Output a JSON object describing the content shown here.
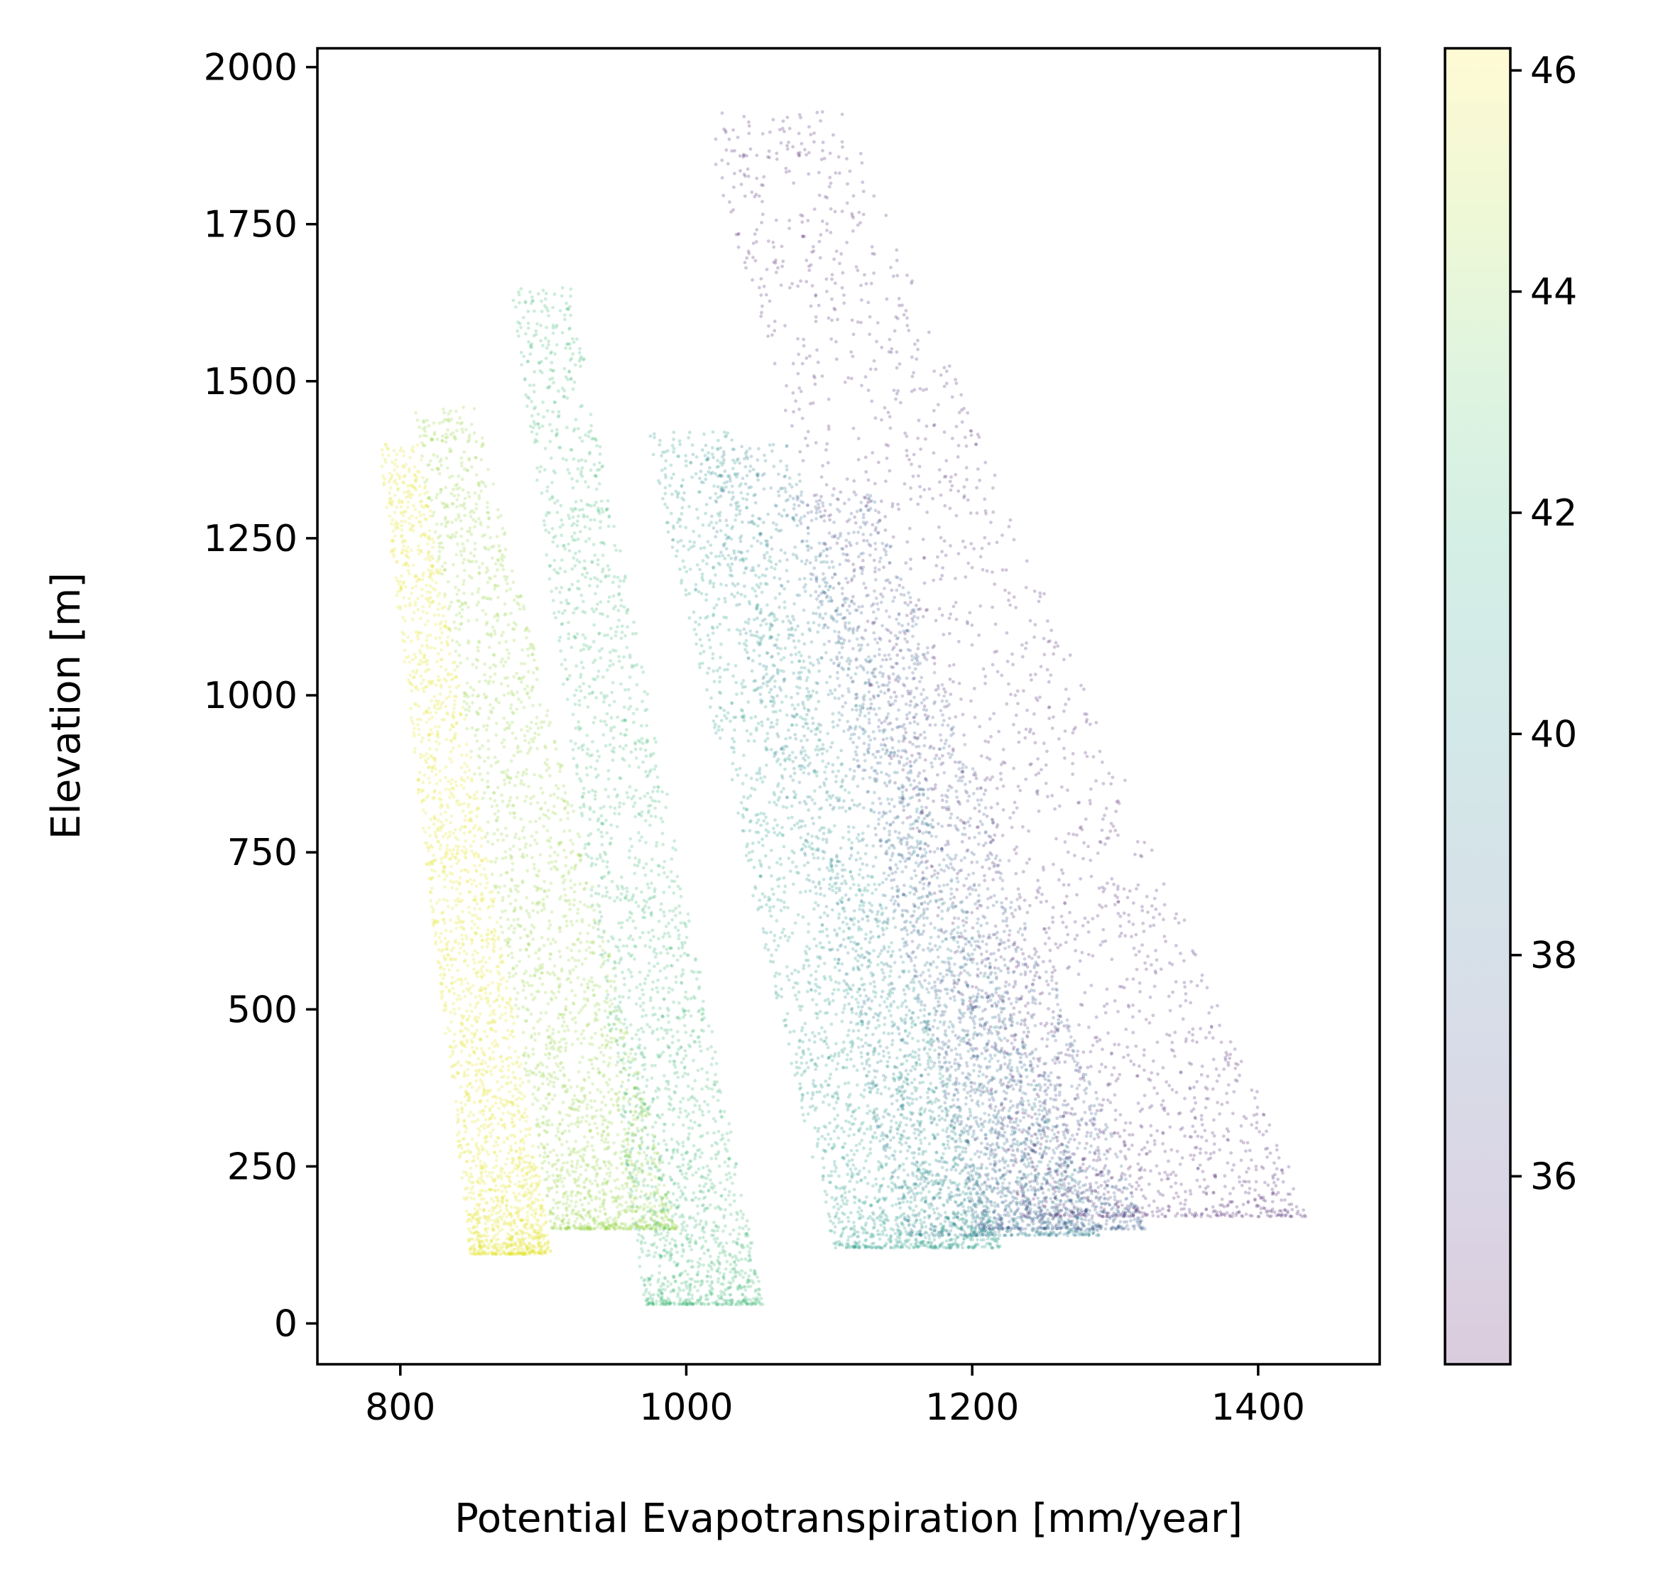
{
  "chart_data": {
    "type": "scatter",
    "title": "",
    "xlabel": "Potential Evapotranspiration [mm/year]",
    "ylabel": "Elevation [m]",
    "xlim": [
      742,
      1485
    ],
    "ylim": [
      -65,
      2030
    ],
    "xticks": [
      800,
      1000,
      1200,
      1400
    ],
    "yticks": [
      0,
      250,
      500,
      750,
      1000,
      1250,
      1500,
      1750,
      2000
    ],
    "grid": false,
    "legend": "none",
    "colormap": "viridis",
    "colorbar": {
      "range": [
        34.3,
        46.2
      ],
      "ticks": [
        36,
        38,
        40,
        42,
        44,
        46
      ],
      "alpha": 0.2
    },
    "point_alpha": 0.25,
    "clusters": [
      {
        "color_value": 45.7,
        "pet_range": [
          780,
          910
        ],
        "elev_range": [
          110,
          1400
        ],
        "note": "yellow-green band, low PET"
      },
      {
        "color_value": 44.2,
        "pet_range": [
          800,
          1000
        ],
        "elev_range": [
          150,
          1460
        ],
        "note": "green band"
      },
      {
        "color_value": 42.3,
        "pet_range": [
          870,
          1060
        ],
        "elev_range": [
          30,
          1650
        ],
        "note": "teal-green band"
      },
      {
        "color_value": 40.8,
        "pet_range": [
          960,
          1230
        ],
        "elev_range": [
          120,
          1420
        ],
        "note": "teal band"
      },
      {
        "color_value": 39.3,
        "pet_range": [
          990,
          1300
        ],
        "elev_range": [
          140,
          1400
        ],
        "note": "blue band"
      },
      {
        "color_value": 37.6,
        "pet_range": [
          1060,
          1330
        ],
        "elev_range": [
          150,
          1320
        ],
        "note": "indigo band"
      },
      {
        "color_value": 35.2,
        "pet_range": [
          990,
          1450
        ],
        "elev_range": [
          170,
          1930
        ],
        "note": "purple band, high PET"
      }
    ]
  }
}
